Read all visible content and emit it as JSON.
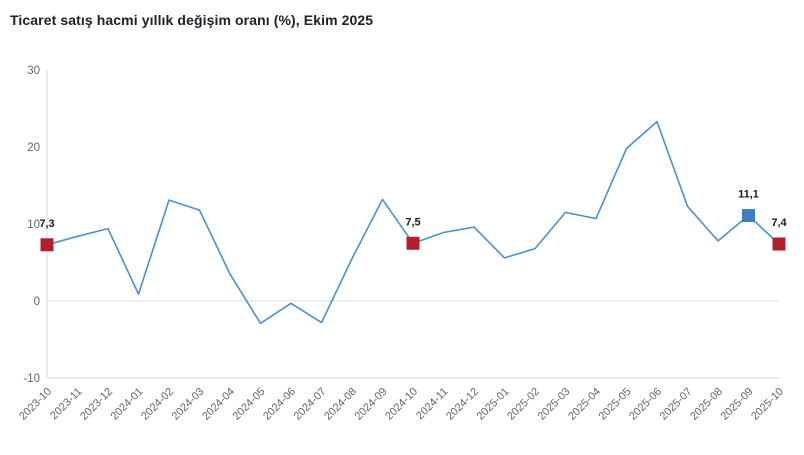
{
  "title": "Ticaret satış hacmi yıllık değişim oranı (%), Ekim 2025",
  "chart_data": {
    "type": "line",
    "title": "Ticaret satış hacmi yıllık değişim oranı (%), Ekim 2025",
    "x": [
      "2023-10",
      "2023-11",
      "2023-12",
      "2024-01",
      "2024-02",
      "2024-03",
      "2024-04",
      "2024-05",
      "2024-06",
      "2024-07",
      "2024-08",
      "2024-09",
      "2024-10",
      "2024-11",
      "2024-12",
      "2025-01",
      "2025-02",
      "2025-03",
      "2025-04",
      "2025-05",
      "2025-06",
      "2025-07",
      "2025-08",
      "2025-09",
      "2025-10"
    ],
    "series": [
      {
        "name": "Yıllık değişim oranı (%)",
        "values": [
          7.3,
          8.4,
          9.4,
          0.9,
          13.1,
          11.8,
          3.5,
          -2.9,
          -0.3,
          -2.8,
          5.5,
          13.2,
          7.5,
          8.9,
          9.6,
          5.6,
          6.8,
          11.5,
          10.7,
          19.8,
          23.3,
          12.3,
          7.8,
          11.1,
          7.4
        ]
      }
    ],
    "ylim": [
      -10,
      30
    ],
    "yticks": [
      30,
      20,
      10,
      0,
      -10
    ],
    "grid": "zero-line-only",
    "legend": "none",
    "xlabel": "",
    "ylabel": "",
    "annotations": [
      {
        "x": "2023-10",
        "value": 7.3,
        "label": "7,3",
        "marker": "red-square"
      },
      {
        "x": "2024-10",
        "value": 7.5,
        "label": "7,5",
        "marker": "red-square"
      },
      {
        "x": "2025-09",
        "value": 11.1,
        "label": "11,1",
        "marker": "blue-square"
      },
      {
        "x": "2025-10",
        "value": 7.4,
        "label": "7,4",
        "marker": "red-square"
      }
    ],
    "colors": {
      "line": "#4a92cf",
      "red_marker": "#b01f2b",
      "blue_marker": "#3c7ebf",
      "title_text": "#20202a",
      "axis_text": "#666666",
      "grid_line": "#e8e8e8",
      "axis_line": "#d9d9d9",
      "annotation_text": "#1a1a1a"
    }
  }
}
